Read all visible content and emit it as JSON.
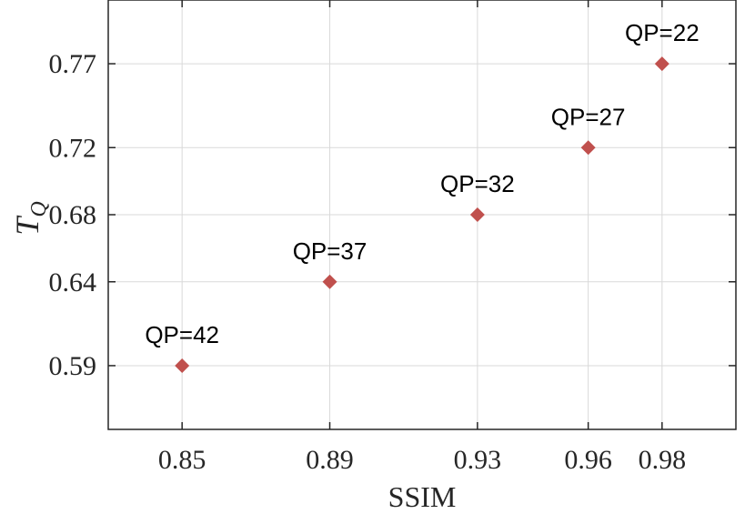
{
  "chart_data": {
    "type": "scatter",
    "title": "",
    "xlabel": "SSIM",
    "ylabel": "T",
    "ylabel_subscript": "Q",
    "xlim": [
      0.83,
      1.0
    ],
    "ylim": [
      0.552,
      0.808
    ],
    "xticks": [
      0.85,
      0.89,
      0.93,
      0.96,
      0.98
    ],
    "xtick_labels": [
      "0.85",
      "0.89",
      "0.93",
      "0.96",
      "0.98"
    ],
    "yticks": [
      0.59,
      0.64,
      0.68,
      0.72,
      0.77
    ],
    "ytick_labels": [
      "0.59",
      "0.64",
      "0.68",
      "0.72",
      "0.77"
    ],
    "grid": true,
    "marker": "diamond",
    "marker_color": "#c0504d",
    "points": [
      {
        "x": 0.85,
        "y": 0.59,
        "label": "QP=42"
      },
      {
        "x": 0.89,
        "y": 0.64,
        "label": "QP=37"
      },
      {
        "x": 0.93,
        "y": 0.68,
        "label": "QP=32"
      },
      {
        "x": 0.96,
        "y": 0.72,
        "label": "QP=27"
      },
      {
        "x": 0.98,
        "y": 0.77,
        "label": "QP=22"
      }
    ]
  }
}
